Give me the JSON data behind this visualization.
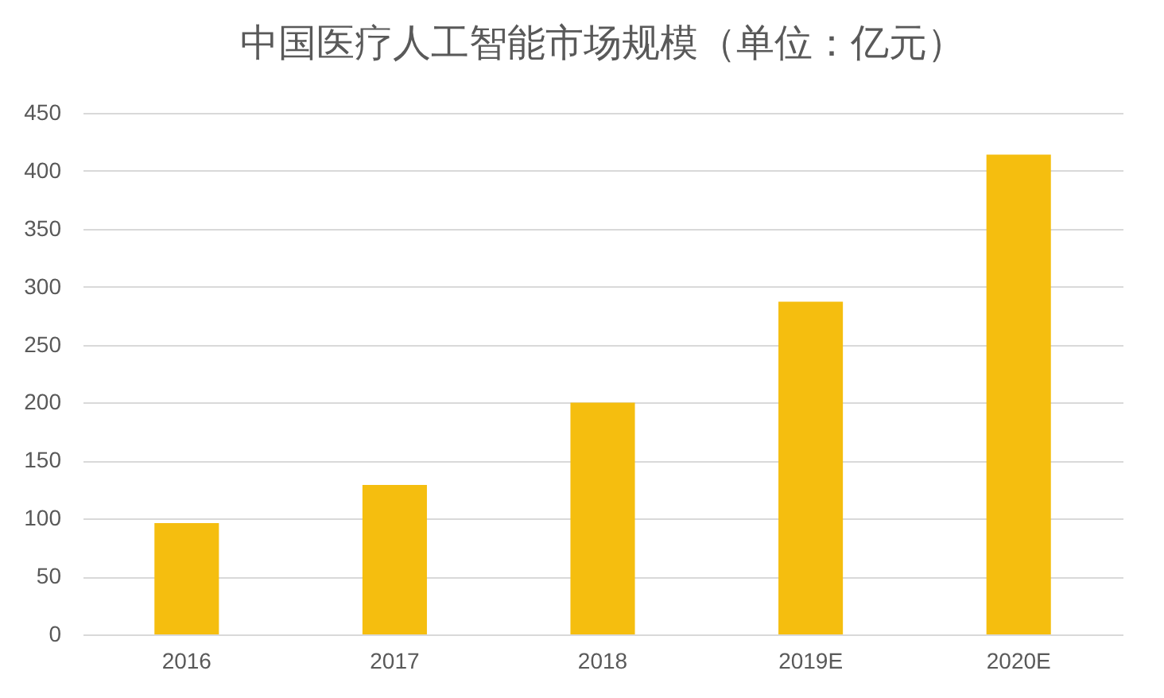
{
  "chart_data": {
    "type": "bar",
    "title": "中国医疗人工智能市场规模（单位：亿元）",
    "categories": [
      "2016",
      "2017",
      "2018",
      "2019E",
      "2020E"
    ],
    "values": [
      96,
      129,
      200,
      287,
      414
    ],
    "color": "#f5be0f",
    "ylim": [
      0,
      450
    ],
    "yticks": [
      0,
      50,
      100,
      150,
      200,
      250,
      300,
      350,
      400,
      450
    ],
    "grid": "y"
  }
}
